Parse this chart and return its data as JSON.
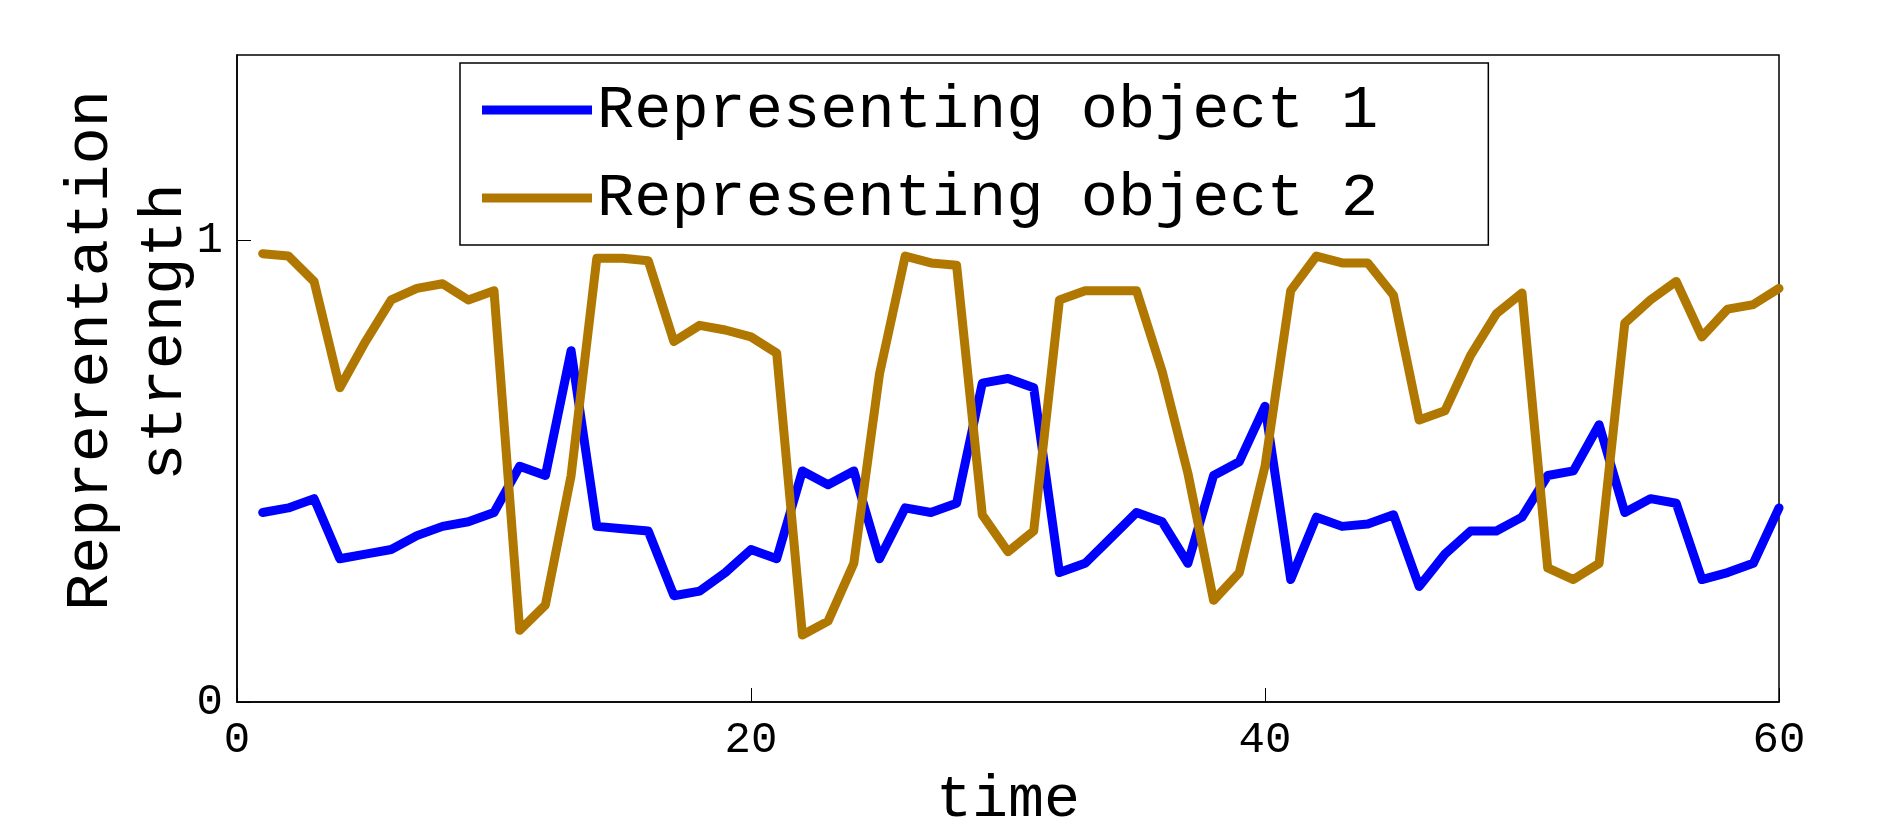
{
  "chart_data": {
    "type": "line",
    "xlabel": "time",
    "ylabel": "Reprerentation strength",
    "x": [
      1,
      2,
      3,
      4,
      5,
      6,
      7,
      8,
      9,
      10,
      11,
      12,
      13,
      14,
      15,
      16,
      17,
      18,
      19,
      20,
      21,
      22,
      23,
      24,
      25,
      26,
      27,
      28,
      29,
      30,
      31,
      32,
      33,
      34,
      35,
      36,
      37,
      38,
      39,
      40,
      41,
      42,
      43,
      44,
      45,
      46,
      47,
      48,
      49,
      50,
      51,
      52,
      53,
      54,
      55,
      56,
      57,
      58,
      59,
      60
    ],
    "series": [
      {
        "name": "Representing object 1",
        "color": "#0000ff",
        "values": [
          0.41,
          0.42,
          0.44,
          0.31,
          0.32,
          0.33,
          0.36,
          0.38,
          0.39,
          0.41,
          0.51,
          0.49,
          0.76,
          0.38,
          0.375,
          0.37,
          0.23,
          0.24,
          0.28,
          0.33,
          0.31,
          0.5,
          0.47,
          0.5,
          0.31,
          0.42,
          0.41,
          0.43,
          0.69,
          0.7,
          0.68,
          0.28,
          0.3,
          0.355,
          0.41,
          0.39,
          0.3,
          0.49,
          0.52,
          0.64,
          0.265,
          0.4,
          0.38,
          0.385,
          0.405,
          0.25,
          0.32,
          0.37,
          0.37,
          0.4,
          0.49,
          0.5,
          0.6,
          0.41,
          0.44,
          0.43,
          0.265,
          0.28,
          0.3,
          0.42
        ]
      },
      {
        "name": "Representing object 2",
        "color": "#b07800",
        "values": [
          0.97,
          0.965,
          0.91,
          0.68,
          0.78,
          0.87,
          0.895,
          0.905,
          0.87,
          0.89,
          0.155,
          0.21,
          0.49,
          0.96,
          0.96,
          0.955,
          0.78,
          0.815,
          0.805,
          0.79,
          0.755,
          0.145,
          0.175,
          0.3,
          0.71,
          0.965,
          0.95,
          0.945,
          0.405,
          0.325,
          0.37,
          0.87,
          0.89,
          0.89,
          0.89,
          0.715,
          0.495,
          0.22,
          0.28,
          0.51,
          0.89,
          0.965,
          0.95,
          0.95,
          0.88,
          0.61,
          0.63,
          0.75,
          0.84,
          0.885,
          0.29,
          0.265,
          0.3,
          0.82,
          0.87,
          0.91,
          0.79,
          0.85,
          0.86,
          0.895
        ]
      }
    ],
    "xlim": [
      0,
      60
    ],
    "xticks": [
      0,
      20,
      40,
      60
    ],
    "ylim": [
      0,
      1.4
    ],
    "yticks": [
      0,
      1
    ],
    "legend": "top",
    "marker": "none",
    "line_style": "solid",
    "grid": false
  }
}
